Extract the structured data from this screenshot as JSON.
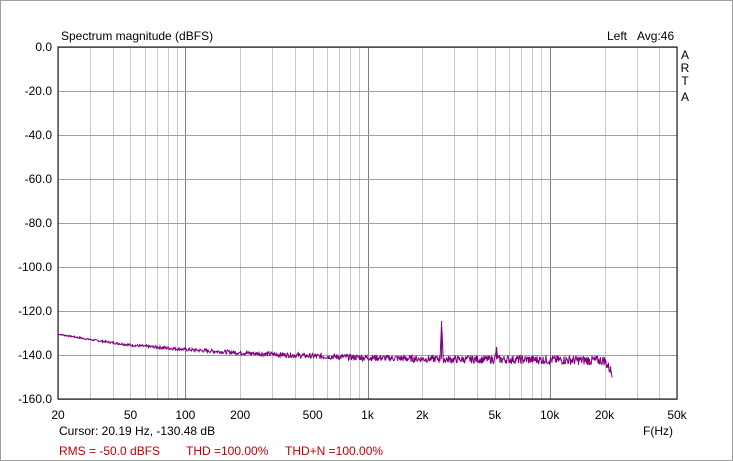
{
  "chart_data": {
    "type": "line",
    "title": "Spectrum magnitude (dBFS)",
    "channel": "Left",
    "average": "Avg:46",
    "watermark": [
      "A",
      "R",
      "T",
      "A"
    ],
    "xlabel": "F(Hz)",
    "ylabel": "",
    "xscale": "log",
    "xlim": [
      20,
      50000
    ],
    "ylim": [
      -160,
      0
    ],
    "grid": true,
    "x_ticks": [
      {
        "v": 20,
        "label": "20"
      },
      {
        "v": 50,
        "label": "50"
      },
      {
        "v": 100,
        "label": "100"
      },
      {
        "v": 200,
        "label": "200"
      },
      {
        "v": 500,
        "label": "500"
      },
      {
        "v": 1000,
        "label": "1k"
      },
      {
        "v": 2000,
        "label": "2k"
      },
      {
        "v": 5000,
        "label": "5k"
      },
      {
        "v": 10000,
        "label": "10k"
      },
      {
        "v": 20000,
        "label": "20k"
      },
      {
        "v": 50000,
        "label": "50k"
      }
    ],
    "y_ticks": [
      {
        "v": 0,
        "label": "0.0"
      },
      {
        "v": -20,
        "label": "-20.0"
      },
      {
        "v": -40,
        "label": "-40.0"
      },
      {
        "v": -60,
        "label": "-60.0"
      },
      {
        "v": -80,
        "label": "-80.0"
      },
      {
        "v": -100,
        "label": "-100.0"
      },
      {
        "v": -120,
        "label": "-120.0"
      },
      {
        "v": -140,
        "label": "-140.0"
      },
      {
        "v": -160,
        "label": "-160.0"
      }
    ],
    "series": [
      {
        "color": "#800080",
        "points": [
          [
            20,
            -130.5
          ],
          [
            30,
            -133
          ],
          [
            50,
            -135.5
          ],
          [
            100,
            -137.5
          ],
          [
            200,
            -139
          ],
          [
            500,
            -140.5
          ],
          [
            1000,
            -141.2
          ],
          [
            2000,
            -141.8
          ],
          [
            2500,
            -141.8
          ],
          [
            2550,
            -124.5
          ],
          [
            2600,
            -142
          ],
          [
            5000,
            -142
          ],
          [
            5100,
            -137.5
          ],
          [
            5200,
            -142
          ],
          [
            10000,
            -142.2
          ],
          [
            20000,
            -142.5
          ],
          [
            22000,
            -148
          ]
        ]
      }
    ]
  },
  "footer": {
    "cursor": "Cursor: 20.19 Hz, -130.48 dB",
    "rms": "RMS =  -50.0 dBFS",
    "thd": "THD =100.00%",
    "thdn": "THD+N =100.00%"
  }
}
